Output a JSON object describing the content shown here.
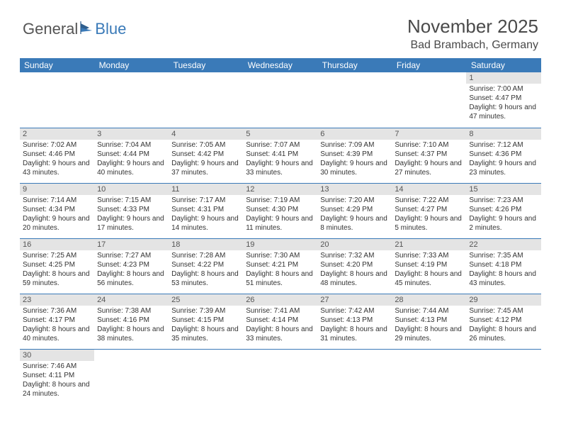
{
  "logo": {
    "part1": "General",
    "part2": "Blue"
  },
  "header": {
    "title": "November 2025",
    "location": "Bad Brambach, Germany"
  },
  "colors": {
    "header_bg": "#3A7AB8",
    "daynum_bg": "#e4e4e4",
    "border": "#3A7AB8"
  },
  "weekdays": [
    "Sunday",
    "Monday",
    "Tuesday",
    "Wednesday",
    "Thursday",
    "Friday",
    "Saturday"
  ],
  "days": {
    "1": {
      "sr": "Sunrise: 7:00 AM",
      "ss": "Sunset: 4:47 PM",
      "dl": "Daylight: 9 hours and 47 minutes."
    },
    "2": {
      "sr": "Sunrise: 7:02 AM",
      "ss": "Sunset: 4:46 PM",
      "dl": "Daylight: 9 hours and 43 minutes."
    },
    "3": {
      "sr": "Sunrise: 7:04 AM",
      "ss": "Sunset: 4:44 PM",
      "dl": "Daylight: 9 hours and 40 minutes."
    },
    "4": {
      "sr": "Sunrise: 7:05 AM",
      "ss": "Sunset: 4:42 PM",
      "dl": "Daylight: 9 hours and 37 minutes."
    },
    "5": {
      "sr": "Sunrise: 7:07 AM",
      "ss": "Sunset: 4:41 PM",
      "dl": "Daylight: 9 hours and 33 minutes."
    },
    "6": {
      "sr": "Sunrise: 7:09 AM",
      "ss": "Sunset: 4:39 PM",
      "dl": "Daylight: 9 hours and 30 minutes."
    },
    "7": {
      "sr": "Sunrise: 7:10 AM",
      "ss": "Sunset: 4:37 PM",
      "dl": "Daylight: 9 hours and 27 minutes."
    },
    "8": {
      "sr": "Sunrise: 7:12 AM",
      "ss": "Sunset: 4:36 PM",
      "dl": "Daylight: 9 hours and 23 minutes."
    },
    "9": {
      "sr": "Sunrise: 7:14 AM",
      "ss": "Sunset: 4:34 PM",
      "dl": "Daylight: 9 hours and 20 minutes."
    },
    "10": {
      "sr": "Sunrise: 7:15 AM",
      "ss": "Sunset: 4:33 PM",
      "dl": "Daylight: 9 hours and 17 minutes."
    },
    "11": {
      "sr": "Sunrise: 7:17 AM",
      "ss": "Sunset: 4:31 PM",
      "dl": "Daylight: 9 hours and 14 minutes."
    },
    "12": {
      "sr": "Sunrise: 7:19 AM",
      "ss": "Sunset: 4:30 PM",
      "dl": "Daylight: 9 hours and 11 minutes."
    },
    "13": {
      "sr": "Sunrise: 7:20 AM",
      "ss": "Sunset: 4:29 PM",
      "dl": "Daylight: 9 hours and 8 minutes."
    },
    "14": {
      "sr": "Sunrise: 7:22 AM",
      "ss": "Sunset: 4:27 PM",
      "dl": "Daylight: 9 hours and 5 minutes."
    },
    "15": {
      "sr": "Sunrise: 7:23 AM",
      "ss": "Sunset: 4:26 PM",
      "dl": "Daylight: 9 hours and 2 minutes."
    },
    "16": {
      "sr": "Sunrise: 7:25 AM",
      "ss": "Sunset: 4:25 PM",
      "dl": "Daylight: 8 hours and 59 minutes."
    },
    "17": {
      "sr": "Sunrise: 7:27 AM",
      "ss": "Sunset: 4:23 PM",
      "dl": "Daylight: 8 hours and 56 minutes."
    },
    "18": {
      "sr": "Sunrise: 7:28 AM",
      "ss": "Sunset: 4:22 PM",
      "dl": "Daylight: 8 hours and 53 minutes."
    },
    "19": {
      "sr": "Sunrise: 7:30 AM",
      "ss": "Sunset: 4:21 PM",
      "dl": "Daylight: 8 hours and 51 minutes."
    },
    "20": {
      "sr": "Sunrise: 7:32 AM",
      "ss": "Sunset: 4:20 PM",
      "dl": "Daylight: 8 hours and 48 minutes."
    },
    "21": {
      "sr": "Sunrise: 7:33 AM",
      "ss": "Sunset: 4:19 PM",
      "dl": "Daylight: 8 hours and 45 minutes."
    },
    "22": {
      "sr": "Sunrise: 7:35 AM",
      "ss": "Sunset: 4:18 PM",
      "dl": "Daylight: 8 hours and 43 minutes."
    },
    "23": {
      "sr": "Sunrise: 7:36 AM",
      "ss": "Sunset: 4:17 PM",
      "dl": "Daylight: 8 hours and 40 minutes."
    },
    "24": {
      "sr": "Sunrise: 7:38 AM",
      "ss": "Sunset: 4:16 PM",
      "dl": "Daylight: 8 hours and 38 minutes."
    },
    "25": {
      "sr": "Sunrise: 7:39 AM",
      "ss": "Sunset: 4:15 PM",
      "dl": "Daylight: 8 hours and 35 minutes."
    },
    "26": {
      "sr": "Sunrise: 7:41 AM",
      "ss": "Sunset: 4:14 PM",
      "dl": "Daylight: 8 hours and 33 minutes."
    },
    "27": {
      "sr": "Sunrise: 7:42 AM",
      "ss": "Sunset: 4:13 PM",
      "dl": "Daylight: 8 hours and 31 minutes."
    },
    "28": {
      "sr": "Sunrise: 7:44 AM",
      "ss": "Sunset: 4:13 PM",
      "dl": "Daylight: 8 hours and 29 minutes."
    },
    "29": {
      "sr": "Sunrise: 7:45 AM",
      "ss": "Sunset: 4:12 PM",
      "dl": "Daylight: 8 hours and 26 minutes."
    },
    "30": {
      "sr": "Sunrise: 7:46 AM",
      "ss": "Sunset: 4:11 PM",
      "dl": "Daylight: 8 hours and 24 minutes."
    }
  },
  "layout": {
    "first_weekday_index": 6,
    "num_days": 30
  }
}
